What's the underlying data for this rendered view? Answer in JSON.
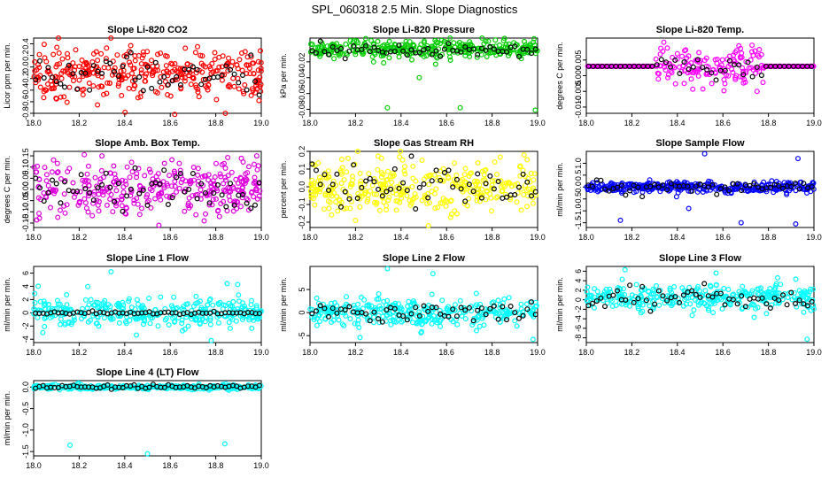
{
  "figure": {
    "title": "SPL_060318  2.5 Min. Slope Diagnostics"
  },
  "chart_data": [
    {
      "type": "scatter",
      "title": "Slope Li-820 CO2",
      "ylabel": "Licor ppm per min.",
      "color": "#ff0000",
      "xlim": [
        18.0,
        19.0
      ],
      "ylim": [
        -0.8,
        0.5
      ],
      "xticks": [
        18.0,
        18.2,
        18.4,
        18.6,
        18.8,
        19.0
      ],
      "yticks": [
        -0.8,
        -0.6,
        -0.4,
        -0.2,
        0.0,
        0.2,
        0.4
      ],
      "ytick_labels": [
        "-0.8",
        "-0.6",
        "-0.4",
        "-0.2",
        "0.0",
        "0.2",
        "0.4"
      ],
      "center": -0.1,
      "spread": 0.45,
      "center_alt": -0.12,
      "spread_alt": 0.38,
      "n": 340,
      "n_alt": 55,
      "outliers": [
        [
          18.62,
          -0.82
        ],
        [
          18.99,
          -0.58
        ],
        [
          18.72,
          0.35
        ],
        [
          18.1,
          -0.55
        ]
      ]
    },
    {
      "type": "scatter",
      "title": "Slope Li-820 Pressure",
      "ylabel": "kPa per min.",
      "color": "#00cc00",
      "xlim": [
        18.0,
        19.0
      ],
      "ylim": [
        -0.085,
        0.01
      ],
      "xticks": [
        18.0,
        18.2,
        18.4,
        18.6,
        18.8,
        19.0
      ],
      "yticks": [
        -0.08,
        -0.06,
        -0.04,
        -0.02
      ],
      "ytick_labels": [
        "-0.08",
        "-0.06",
        "-0.04",
        "-0.02"
      ],
      "center": -0.004,
      "spread": 0.014,
      "center_alt": -0.006,
      "spread_alt": 0.01,
      "n": 340,
      "n_alt": 55,
      "outliers": [
        [
          18.34,
          -0.078
        ],
        [
          18.66,
          -0.078
        ],
        [
          18.99,
          -0.081
        ],
        [
          18.48,
          -0.04
        ]
      ]
    },
    {
      "type": "scatter",
      "title": "Slope Li-820 Temp.",
      "ylabel": "degrees C per min.",
      "color": "#ff00ff",
      "xlim": [
        18.0,
        19.0
      ],
      "ylim": [
        -0.012,
        0.012
      ],
      "xticks": [
        18.0,
        18.2,
        18.4,
        18.6,
        18.8,
        19.0
      ],
      "yticks": [
        -0.01,
        -0.005,
        0.0,
        0.005
      ],
      "ytick_labels": [
        "-0.010",
        "-0.005",
        "0.000",
        "0.005"
      ],
      "center": 0.0,
      "spread": 0.006,
      "center_alt": 0.0,
      "spread_alt": 0.004,
      "n": 300,
      "n_alt": 50,
      "band": [
        18.3,
        18.78
      ],
      "flat": 0.003,
      "outliers": [
        [
          18.66,
          0.008
        ],
        [
          18.4,
          0.007
        ],
        [
          18.75,
          -0.005
        ]
      ]
    },
    {
      "type": "scatter",
      "title": "Slope Amb. Box Temp.",
      "ylabel": "degrees C per min.",
      "color": "#dd00dd",
      "xlim": [
        18.0,
        19.0
      ],
      "ylim": [
        -0.17,
        0.17
      ],
      "xticks": [
        18.0,
        18.2,
        18.4,
        18.6,
        18.8,
        19.0
      ],
      "yticks": [
        -0.15,
        -0.1,
        -0.05,
        0.0,
        0.05,
        0.1,
        0.15
      ],
      "ytick_labels": [
        "-0.15",
        "-0.10",
        "-0.05",
        "0.00",
        "0.05",
        "0.10",
        "0.15"
      ],
      "center": 0.0,
      "spread": 0.13,
      "center_alt": 0.0,
      "spread_alt": 0.1,
      "n": 340,
      "n_alt": 55,
      "outliers": [
        [
          18.55,
          -0.16
        ],
        [
          18.98,
          0.15
        ],
        [
          18.3,
          0.15
        ]
      ]
    },
    {
      "type": "scatter",
      "title": "Slope Gas Stream RH",
      "ylabel": "percent per min.",
      "color": "#ffff00",
      "xlim": [
        18.0,
        19.0
      ],
      "ylim": [
        -0.23,
        0.2
      ],
      "xticks": [
        18.0,
        18.2,
        18.4,
        18.6,
        18.8,
        19.0
      ],
      "yticks": [
        -0.2,
        -0.1,
        0.0,
        0.1,
        0.2
      ],
      "ytick_labels": [
        "-0.2",
        "-0.1",
        "0.0",
        "0.1",
        "0.2"
      ],
      "center": 0.0,
      "spread": 0.16,
      "center_alt": 0.0,
      "spread_alt": 0.13,
      "n": 340,
      "n_alt": 55,
      "outliers": [
        [
          18.52,
          -0.22
        ],
        [
          18.94,
          0.18
        ],
        [
          18.2,
          -0.19
        ]
      ]
    },
    {
      "type": "scatter",
      "title": "Slope Sample Flow",
      "ylabel": "ml/min per min.",
      "color": "#0000ff",
      "xlim": [
        18.0,
        19.0
      ],
      "ylim": [
        -1.7,
        1.5
      ],
      "xticks": [
        18.0,
        18.2,
        18.4,
        18.6,
        18.8,
        19.0
      ],
      "yticks": [
        -1.5,
        -1.0,
        -0.5,
        0.0,
        0.5,
        1.0
      ],
      "ytick_labels": [
        "-1.5",
        "-1.0",
        "-0.5",
        "0.0",
        "0.5",
        "1.0"
      ],
      "center": 0.0,
      "spread": 0.25,
      "center_alt": 0.0,
      "spread_alt": 0.25,
      "n": 340,
      "n_alt": 55,
      "outliers": [
        [
          18.52,
          1.4
        ],
        [
          18.93,
          1.2
        ],
        [
          18.15,
          -1.4
        ],
        [
          18.68,
          -1.5
        ],
        [
          18.92,
          -1.55
        ],
        [
          18.45,
          -0.9
        ]
      ]
    },
    {
      "type": "scatter",
      "title": "Slope Line 1 Flow",
      "ylabel": "ml/min per min.",
      "color": "#00ffff",
      "xlim": [
        18.0,
        19.0
      ],
      "ylim": [
        -4.5,
        7
      ],
      "xticks": [
        18.0,
        18.2,
        18.4,
        18.6,
        18.8,
        19.0
      ],
      "yticks": [
        -4,
        -2,
        0,
        2,
        4,
        6
      ],
      "ytick_labels": [
        "-4",
        "-2",
        "0",
        "2",
        "4",
        "6"
      ],
      "center": 0.0,
      "spread": 2.4,
      "center_alt": 0.0,
      "spread_alt": 0.3,
      "n": 320,
      "n_alt": 60,
      "outliers": [
        [
          18.34,
          6.2
        ],
        [
          18.02,
          4.0
        ],
        [
          18.78,
          -4.2
        ],
        [
          18.85,
          4.4
        ]
      ]
    },
    {
      "type": "scatter",
      "title": "Slope Line 2 Flow",
      "ylabel": "ml/min per min.",
      "color": "#00ffff",
      "xlim": [
        18.0,
        19.0
      ],
      "ylim": [
        -6.5,
        10
      ],
      "xticks": [
        18.0,
        18.2,
        18.4,
        18.6,
        18.8,
        19.0
      ],
      "yticks": [
        -5,
        0,
        5
      ],
      "ytick_labels": [
        "-5",
        "0",
        "5"
      ],
      "center": 0.0,
      "spread": 3.2,
      "center_alt": 0.0,
      "spread_alt": 2.5,
      "n": 320,
      "n_alt": 55,
      "outliers": [
        [
          18.34,
          9.5
        ],
        [
          18.54,
          8.4
        ],
        [
          18.98,
          -5.8
        ],
        [
          18.22,
          -5.4
        ]
      ]
    },
    {
      "type": "scatter",
      "title": "Slope Line 3 Flow",
      "ylabel": "ml/min per min.",
      "color": "#00ffff",
      "xlim": [
        18.0,
        19.0
      ],
      "ylim": [
        -9,
        7
      ],
      "xticks": [
        18.0,
        18.2,
        18.4,
        18.6,
        18.8,
        19.0
      ],
      "yticks": [
        -8,
        -6,
        -4,
        -2,
        0,
        2,
        4,
        6
      ],
      "ytick_labels": [
        "-8",
        "-6",
        "-4",
        "-2",
        "0",
        "2",
        "4",
        "6"
      ],
      "center": 0.5,
      "spread": 3.0,
      "center_alt": 0.5,
      "spread_alt": 2.6,
      "n": 320,
      "n_alt": 55,
      "outliers": [
        [
          18.17,
          6.3
        ],
        [
          18.97,
          -8.3
        ],
        [
          18.57,
          5.6
        ]
      ]
    },
    {
      "type": "scatter",
      "title": "Slope Line 4 (LT) Flow",
      "ylabel": "ml/min per min.",
      "color": "#00ffff",
      "xlim": [
        18.0,
        19.0
      ],
      "ylim": [
        -1.6,
        0.15
      ],
      "xticks": [
        18.0,
        18.2,
        18.4,
        18.6,
        18.8,
        19.0
      ],
      "yticks": [
        -1.5,
        -1.0,
        -0.5,
        0.0
      ],
      "ytick_labels": [
        "-1.5",
        "-1.0",
        "-0.5",
        "0.0"
      ],
      "center": 0.0,
      "spread": 0.06,
      "center_alt": 0.0,
      "spread_alt": 0.05,
      "n": 320,
      "n_alt": 60,
      "outliers": [
        [
          18.16,
          -1.35
        ],
        [
          18.5,
          -1.55
        ],
        [
          18.84,
          -1.32
        ]
      ]
    }
  ]
}
